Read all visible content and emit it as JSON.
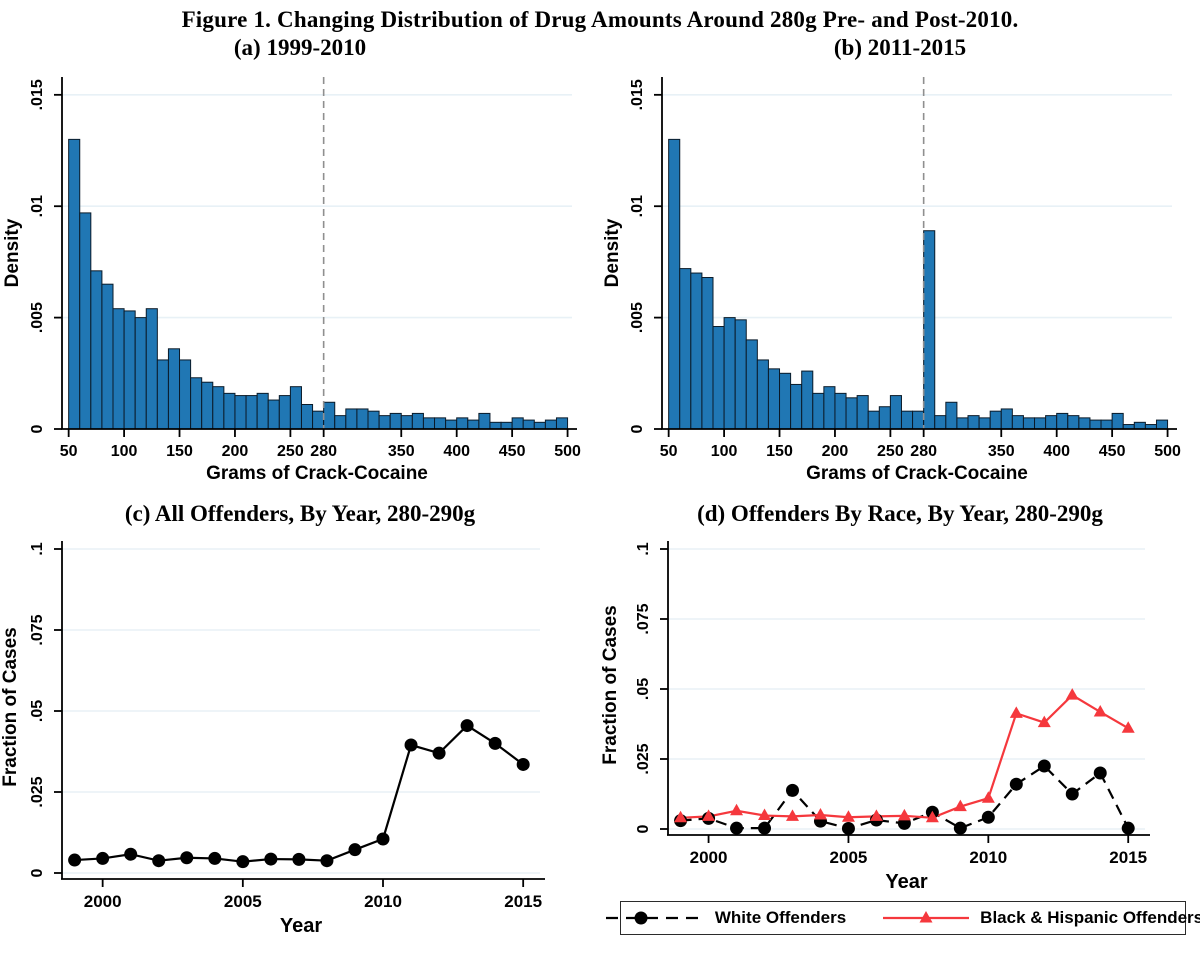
{
  "figure": {
    "title": "Figure 1. Changing Distribution of Drug Amounts Around 280g Pre- and Post-2010."
  },
  "colors": {
    "bar_fill": "#2077b4",
    "bar_edge": "#0b1b29",
    "grid": "#e8f1f6",
    "refline": "#8f8f8f",
    "axis": "#000000",
    "white_series": "#000000",
    "minority_series": "#f5383d"
  },
  "chart_data": [
    {
      "id": "a",
      "type": "bar",
      "title": "(a) 1999-2010",
      "xlabel": "Grams of Crack-Cocaine",
      "ylabel": "Density",
      "bin_start": 50,
      "bin_width": 10,
      "values": [
        0.013,
        0.0097,
        0.0071,
        0.0065,
        0.0054,
        0.0053,
        0.005,
        0.0054,
        0.0031,
        0.0036,
        0.0031,
        0.0023,
        0.0021,
        0.0019,
        0.0016,
        0.0015,
        0.0015,
        0.0016,
        0.0013,
        0.0015,
        0.0019,
        0.0011,
        0.0008,
        0.0012,
        0.0006,
        0.0009,
        0.0009,
        0.0008,
        0.0006,
        0.0007,
        0.0006,
        0.0007,
        0.0005,
        0.0005,
        0.0004,
        0.0005,
        0.0004,
        0.0007,
        0.0003,
        0.0003,
        0.0005,
        0.0004,
        0.0003,
        0.0004,
        0.0005
      ],
      "xlim": [
        44,
        504
      ],
      "ylim": [
        0,
        0.0158
      ],
      "refline_x": 280,
      "xticks": [
        50,
        100,
        150,
        200,
        250,
        280,
        350,
        400,
        450,
        500
      ],
      "xtick_labels": [
        "50",
        "100",
        "150",
        "200",
        "250",
        "280",
        "350",
        "400",
        "450",
        "500"
      ],
      "yticks": [
        0,
        0.005,
        0.01,
        0.015
      ],
      "ytick_labels": [
        "0",
        ".005",
        ".01",
        ".015"
      ],
      "grid": true,
      "legend_position": "none"
    },
    {
      "id": "b",
      "type": "bar",
      "title": "(b) 2011-2015",
      "xlabel": "Grams of Crack-Cocaine",
      "ylabel": "Density",
      "bin_start": 50,
      "bin_width": 10,
      "values": [
        0.013,
        0.0072,
        0.007,
        0.0068,
        0.0046,
        0.005,
        0.0049,
        0.004,
        0.0031,
        0.0027,
        0.0025,
        0.002,
        0.0026,
        0.0016,
        0.0019,
        0.0016,
        0.0014,
        0.0015,
        0.0008,
        0.001,
        0.0015,
        0.0008,
        0.0008,
        0.0089,
        0.0006,
        0.0012,
        0.0005,
        0.0006,
        0.0005,
        0.0008,
        0.0009,
        0.0006,
        0.0005,
        0.0005,
        0.0006,
        0.0007,
        0.0006,
        0.0005,
        0.0004,
        0.0004,
        0.0007,
        0.0002,
        0.0003,
        0.0002,
        0.0004
      ],
      "xlim": [
        44,
        504
      ],
      "ylim": [
        0,
        0.0158
      ],
      "refline_x": 280,
      "xticks": [
        50,
        100,
        150,
        200,
        250,
        280,
        350,
        400,
        450,
        500
      ],
      "xtick_labels": [
        "50",
        "100",
        "150",
        "200",
        "250",
        "280",
        "350",
        "400",
        "450",
        "500"
      ],
      "yticks": [
        0,
        0.005,
        0.01,
        0.015
      ],
      "ytick_labels": [
        "0",
        ".005",
        ".01",
        ".015"
      ],
      "grid": true,
      "legend_position": "none"
    },
    {
      "id": "c",
      "type": "line",
      "title": "(c) All Offenders, By Year, 280-290g",
      "xlabel": "Year",
      "ylabel": "Fraction of Cases",
      "x": [
        1999,
        2000,
        2001,
        2002,
        2003,
        2004,
        2005,
        2006,
        2007,
        2008,
        2009,
        2010,
        2011,
        2012,
        2013,
        2014,
        2015
      ],
      "series": [
        {
          "name": "All Offenders",
          "color": "#000000",
          "style": "solid",
          "marker": "circle",
          "values": [
            0.004,
            0.0045,
            0.0058,
            0.0038,
            0.0047,
            0.0045,
            0.0035,
            0.0043,
            0.0042,
            0.0038,
            0.0072,
            0.0105,
            0.0395,
            0.037,
            0.0455,
            0.04,
            0.0335
          ]
        }
      ],
      "xlim": [
        1998.55,
        2015.6
      ],
      "ylim": [
        0,
        0.1
      ],
      "xticks": [
        2000,
        2005,
        2010,
        2015
      ],
      "xtick_labels": [
        "2000",
        "2005",
        "2010",
        "2015"
      ],
      "yticks": [
        0,
        0.025,
        0.05,
        0.075,
        0.1
      ],
      "ytick_labels": [
        "0",
        ".025",
        ".05",
        ".075",
        ".1"
      ],
      "grid": true,
      "legend_position": "none"
    },
    {
      "id": "d",
      "type": "line",
      "title": "(d) Offenders By Race, By Year, 280-290g",
      "xlabel": "Year",
      "ylabel": "Fraction of Cases",
      "x": [
        1999,
        2000,
        2001,
        2002,
        2003,
        2004,
        2005,
        2006,
        2007,
        2008,
        2009,
        2010,
        2011,
        2012,
        2013,
        2014,
        2015
      ],
      "series": [
        {
          "name": "White Offenders",
          "color": "#000000",
          "style": "dashed",
          "marker": "circle",
          "values": [
            0.003,
            0.0038,
            0.0003,
            0.0003,
            0.0138,
            0.0028,
            0.0002,
            0.0032,
            0.002,
            0.006,
            0.0003,
            0.0042,
            0.016,
            0.0225,
            0.0125,
            0.02,
            0.0003
          ]
        },
        {
          "name": "Black & Hispanic Offenders",
          "color": "#f5383d",
          "style": "solid",
          "marker": "triangle",
          "values": [
            0.004,
            0.0045,
            0.0065,
            0.0048,
            0.0045,
            0.005,
            0.0042,
            0.0045,
            0.0047,
            0.004,
            0.008,
            0.011,
            0.0413,
            0.038,
            0.0478,
            0.0418,
            0.036
          ]
        }
      ],
      "xlim": [
        1998.55,
        2015.6
      ],
      "ylim": [
        0,
        0.1
      ],
      "xticks": [
        2000,
        2005,
        2010,
        2015
      ],
      "xtick_labels": [
        "2000",
        "2005",
        "2010",
        "2015"
      ],
      "yticks": [
        0,
        0.025,
        0.05,
        0.075,
        0.1
      ],
      "ytick_labels": [
        "0",
        ".025",
        ".05",
        ".075",
        ".1"
      ],
      "grid": true,
      "legend_position": "bottom"
    }
  ]
}
